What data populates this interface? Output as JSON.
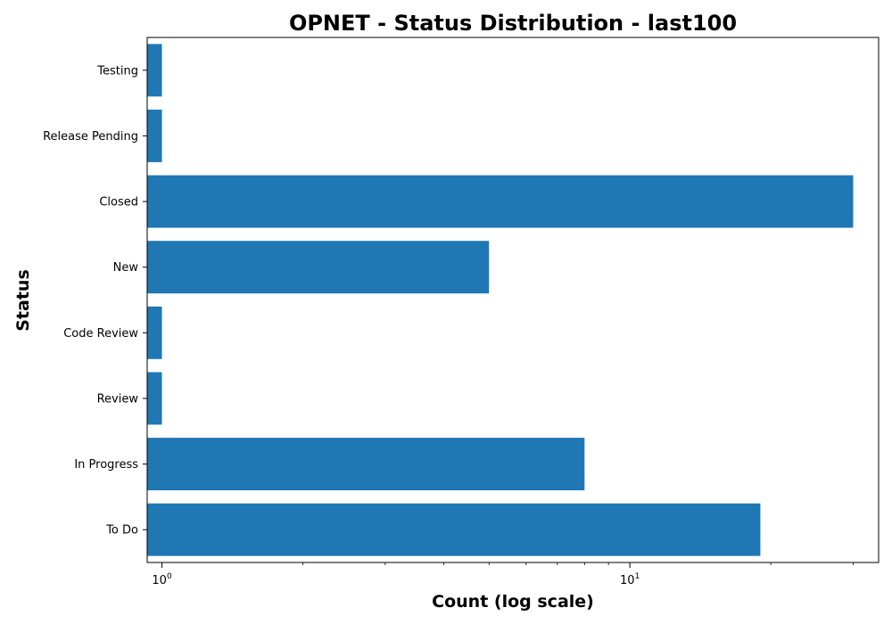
{
  "chart_data": {
    "type": "bar",
    "orientation": "horizontal",
    "title": "OPNET - Status Distribution - last100",
    "xlabel": "Count (log scale)",
    "ylabel": "Status",
    "x_scale": "log",
    "xlim": [
      0.93,
      34
    ],
    "x_ticks": [
      {
        "value": 1,
        "base": "10",
        "exp": "0"
      },
      {
        "value": 10,
        "base": "10",
        "exp": "1"
      }
    ],
    "categories": [
      "Testing",
      "Release Pending",
      "Closed",
      "New",
      "Code Review",
      "Review",
      "In Progress",
      "To Do"
    ],
    "values": [
      1,
      1,
      30,
      5,
      1,
      1,
      8,
      19
    ],
    "bar_color": "#1f77b4",
    "grid": false,
    "legend": "none"
  }
}
